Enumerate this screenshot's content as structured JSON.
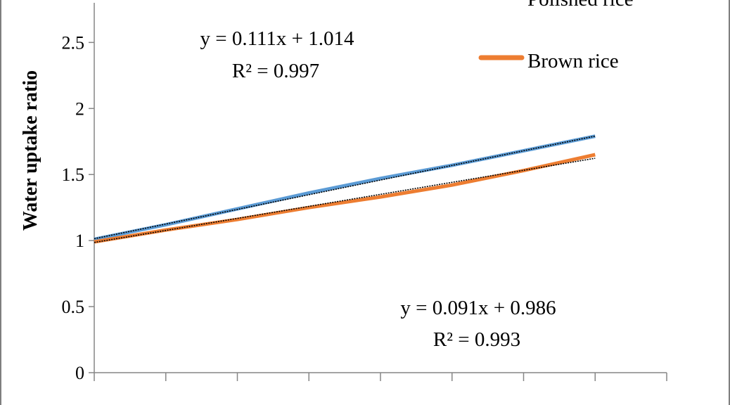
{
  "chart_data": {
    "type": "line",
    "ylabel": "Water uptake ratio",
    "ylim": [
      0,
      2.8
    ],
    "yticks": [
      0,
      0.5,
      1,
      1.5,
      2,
      2.5
    ],
    "ytick_labels": [
      "0",
      "0.5",
      "1",
      "1.5",
      "2",
      "2.5"
    ],
    "x": [
      0,
      1,
      2,
      3,
      4,
      5,
      6,
      7
    ],
    "xlim": [
      0,
      8
    ],
    "xtick_positions": [
      0,
      1,
      2,
      3,
      4,
      5,
      6,
      7,
      8
    ],
    "grid": false,
    "legend_position": "top-right",
    "series": [
      {
        "name": "Polished rice",
        "color": "#5b9bd5",
        "values": [
          1.01,
          1.12,
          1.24,
          1.36,
          1.47,
          1.57,
          1.68,
          1.79
        ]
      },
      {
        "name": "Brown rice",
        "color": "#ed7d31",
        "values": [
          0.99,
          1.08,
          1.16,
          1.25,
          1.33,
          1.42,
          1.53,
          1.65
        ]
      }
    ],
    "trendlines": [
      {
        "color": "#000000",
        "slope": 0.111,
        "intercept": 1.014,
        "x_start": 0,
        "x_end": 7
      },
      {
        "color": "#000000",
        "slope": 0.091,
        "intercept": 0.986,
        "x_start": 0,
        "x_end": 7
      }
    ],
    "annotations": [
      {
        "equation": "y = 0.111x + 1.014",
        "r2": "R² = 0.997"
      },
      {
        "equation": "y = 0.091x + 0.986",
        "r2": "R² = 0.993"
      }
    ]
  }
}
